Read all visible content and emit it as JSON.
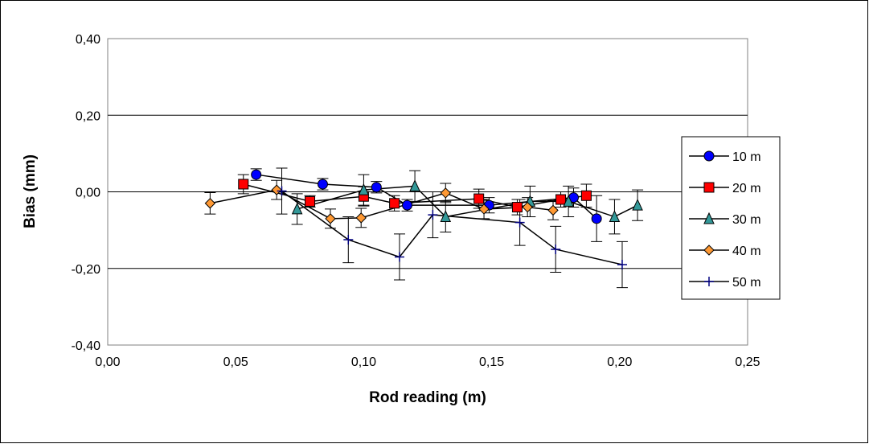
{
  "chart_data": {
    "type": "scatter",
    "title": "",
    "xlabel": "Rod reading (m)",
    "ylabel": "Bias (mm)",
    "xlim": [
      0.0,
      0.25
    ],
    "ylim": [
      -0.4,
      0.4
    ],
    "x_ticks": [
      "0,00",
      "0,05",
      "0,10",
      "0,15",
      "0,20",
      "0,25"
    ],
    "y_ticks": [
      "0,40",
      "0,20",
      "0,00",
      "-0,20",
      "-0,40"
    ],
    "x_tick_values": [
      0.0,
      0.05,
      0.1,
      0.15,
      0.2,
      0.25
    ],
    "y_tick_values": [
      0.4,
      0.2,
      0.0,
      -0.2,
      -0.4
    ],
    "grid": "horizontal",
    "legend_position": "right",
    "series": [
      {
        "name": "10 m",
        "marker": "circle",
        "color": "#0000ff",
        "x": [
          0.058,
          0.084,
          0.105,
          0.117,
          0.149,
          0.182,
          0.191
        ],
        "y": [
          0.045,
          0.02,
          0.012,
          -0.035,
          -0.035,
          -0.015,
          -0.07
        ],
        "err": [
          0.015,
          0.015,
          0.015,
          0.015,
          0.02,
          0.025,
          0.06
        ]
      },
      {
        "name": "20 m",
        "marker": "square",
        "color": "#ff0000",
        "x": [
          0.053,
          0.079,
          0.1,
          0.112,
          0.145,
          0.16,
          0.177,
          0.187
        ],
        "y": [
          0.02,
          -0.025,
          -0.012,
          -0.03,
          -0.018,
          -0.04,
          -0.02,
          -0.01
        ],
        "err": [
          0.025,
          0.015,
          0.025,
          0.02,
          0.025,
          0.02,
          0.02,
          0.03
        ]
      },
      {
        "name": "30 m",
        "marker": "triangle",
        "color": "#339999",
        "x": [
          0.074,
          0.1,
          0.12,
          0.132,
          0.165,
          0.18,
          0.198,
          0.207
        ],
        "y": [
          -0.045,
          0.005,
          0.015,
          -0.065,
          -0.025,
          -0.025,
          -0.065,
          -0.035
        ],
        "err": [
          0.04,
          0.04,
          0.04,
          0.04,
          0.04,
          0.04,
          0.045,
          0.04
        ]
      },
      {
        "name": "40 m",
        "marker": "diamond",
        "color": "#ff9933",
        "x": [
          0.04,
          0.066,
          0.087,
          0.099,
          0.132,
          0.147,
          0.164,
          0.174
        ],
        "y": [
          -0.03,
          0.005,
          -0.07,
          -0.068,
          -0.003,
          -0.045,
          -0.04,
          -0.048
        ],
        "err": [
          0.028,
          0.025,
          0.025,
          0.025,
          0.025,
          0.025,
          0.025,
          0.025
        ]
      },
      {
        "name": "50 m",
        "marker": "plus",
        "color": "#000080",
        "x": [
          0.068,
          0.094,
          0.114,
          0.127,
          0.161,
          0.175,
          0.201
        ],
        "y": [
          0.002,
          -0.125,
          -0.17,
          -0.06,
          -0.08,
          -0.15,
          -0.19
        ],
        "err": [
          0.06,
          0.06,
          0.06,
          0.06,
          0.06,
          0.06,
          0.06
        ]
      }
    ]
  }
}
